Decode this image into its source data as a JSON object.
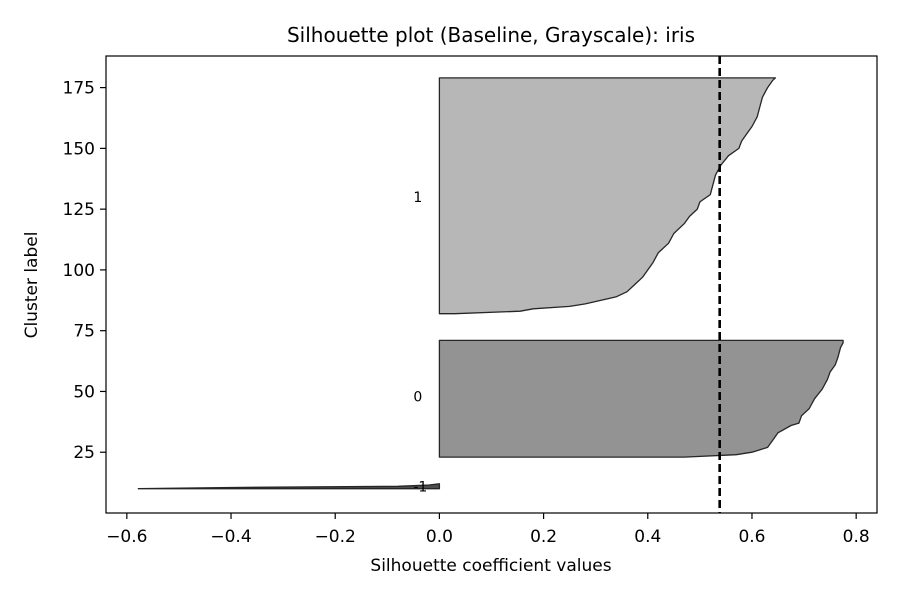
{
  "chart_data": {
    "type": "silhouette",
    "title": "Silhouette plot (Baseline, Grayscale): iris",
    "xlabel": "Silhouette coefficient values",
    "ylabel": "Cluster label",
    "xlim": [
      -0.64,
      0.84
    ],
    "ylim": [
      0,
      188
    ],
    "xticks": [
      -0.6,
      -0.4,
      -0.2,
      0.0,
      0.2,
      0.4,
      0.6,
      0.8
    ],
    "xtick_labels": [
      "−0.6",
      "−0.4",
      "−0.2",
      "0.0",
      "0.2",
      "0.4",
      "0.6",
      "0.8"
    ],
    "yticks": [
      25,
      50,
      75,
      100,
      125,
      150,
      175
    ],
    "ytick_labels": [
      "25",
      "50",
      "75",
      "100",
      "125",
      "150",
      "175"
    ],
    "average_silhouette": 0.538,
    "grid": false,
    "clusters": [
      {
        "label": "-1",
        "label_y": 11,
        "fill": "#4d4d4d",
        "profile": [
          [
            10,
            -0.578
          ],
          [
            10.5,
            -0.4
          ],
          [
            11,
            -0.08
          ],
          [
            11.5,
            -0.02
          ],
          [
            12,
            0.0
          ]
        ]
      },
      {
        "label": "0",
        "label_y": 48,
        "fill": "#939393",
        "profile": [
          [
            23,
            0.47
          ],
          [
            24,
            0.57
          ],
          [
            25,
            0.6
          ],
          [
            27,
            0.63
          ],
          [
            30,
            0.64
          ],
          [
            33,
            0.65
          ],
          [
            36,
            0.675
          ],
          [
            37,
            0.69
          ],
          [
            40,
            0.695
          ],
          [
            43,
            0.71
          ],
          [
            47,
            0.72
          ],
          [
            51,
            0.735
          ],
          [
            55,
            0.745
          ],
          [
            58,
            0.75
          ],
          [
            61,
            0.76
          ],
          [
            64,
            0.765
          ],
          [
            68,
            0.77
          ],
          [
            70,
            0.775
          ],
          [
            71,
            0.775
          ]
        ]
      },
      {
        "label": "1",
        "label_y": 130,
        "fill": "#b7b7b7",
        "profile": [
          [
            82,
            0.03
          ],
          [
            83,
            0.155
          ],
          [
            84,
            0.18
          ],
          [
            85,
            0.25
          ],
          [
            86,
            0.28
          ],
          [
            87,
            0.3
          ],
          [
            89,
            0.34
          ],
          [
            91,
            0.36
          ],
          [
            94,
            0.375
          ],
          [
            97,
            0.39
          ],
          [
            100,
            0.4
          ],
          [
            103,
            0.41
          ],
          [
            107,
            0.42
          ],
          [
            111,
            0.44
          ],
          [
            115,
            0.45
          ],
          [
            119,
            0.47
          ],
          [
            122,
            0.48
          ],
          [
            125,
            0.495
          ],
          [
            128,
            0.5
          ],
          [
            131,
            0.52
          ],
          [
            135,
            0.525
          ],
          [
            139,
            0.53
          ],
          [
            143,
            0.54
          ],
          [
            147,
            0.555
          ],
          [
            150,
            0.575
          ],
          [
            153,
            0.58
          ],
          [
            156,
            0.59
          ],
          [
            159,
            0.6
          ],
          [
            163,
            0.61
          ],
          [
            167,
            0.615
          ],
          [
            171,
            0.62
          ],
          [
            175,
            0.63
          ],
          [
            178,
            0.64
          ],
          [
            179,
            0.645
          ]
        ]
      }
    ]
  }
}
